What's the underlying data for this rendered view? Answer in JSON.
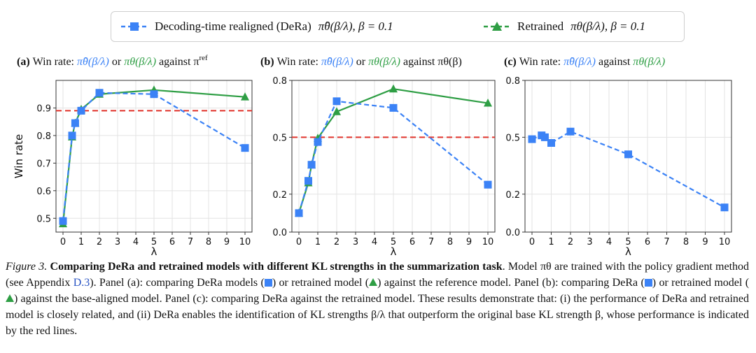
{
  "legend": {
    "blue_label": "Decoding-time realigned (DeRa)",
    "blue_math": "π̂θ(β/λ),  β = 0.1",
    "green_label": "Retrained",
    "green_math": "πθ(β/λ),  β = 0.1"
  },
  "colors": {
    "blue": "#3b82f6",
    "green": "#2e9e44",
    "red": "#e0332b",
    "axis": "#333333"
  },
  "chart_data": [
    {
      "type": "line",
      "panel": "(a)",
      "title_prefix": "(a)",
      "title_text": "Win rate:",
      "title_blue": "π̂θ(β/λ)",
      "title_mid": "or",
      "title_green": "πθ(β/λ)",
      "title_end": "against π",
      "title_sup": "ref",
      "xlabel": "λ",
      "ylabel": "Win rate",
      "xticks": [
        0,
        1,
        2,
        3,
        4,
        5,
        6,
        7,
        8,
        9,
        10
      ],
      "ylim": [
        0.45,
        1.0
      ],
      "yticks": [
        0.5,
        0.6,
        0.7,
        0.8,
        0.9
      ],
      "reference_line": 0.89,
      "series": [
        {
          "x": [
            0,
            0.5,
            0.67,
            1,
            2,
            5,
            10
          ],
          "values": [
            0.49,
            0.8,
            0.845,
            0.89,
            0.955,
            0.95,
            0.755
          ]
        },
        {
          "x": [
            0,
            0.5,
            0.67,
            1,
            2,
            5,
            10
          ],
          "values": [
            0.48,
            0.795,
            0.845,
            0.895,
            0.95,
            0.965,
            0.94
          ]
        }
      ]
    },
    {
      "type": "line",
      "panel": "(b)",
      "title_prefix": "(b)",
      "title_text": "Win rate:",
      "title_blue": "π̂θ(β/λ)",
      "title_mid": "or",
      "title_green": "πθ(β/λ)",
      "title_end": "against πθ(β)",
      "title_sup": "",
      "xlabel": "λ",
      "ylabel": "",
      "xticks": [
        0,
        1,
        2,
        3,
        4,
        5,
        6,
        7,
        8,
        9,
        10
      ],
      "ylim": [
        0.0,
        0.8
      ],
      "yticks": [
        0.0,
        0.2,
        0.5,
        0.8
      ],
      "reference_line": 0.5,
      "series": [
        {
          "x": [
            0,
            0.5,
            0.67,
            1,
            2,
            5,
            10
          ],
          "values": [
            0.1,
            0.27,
            0.355,
            0.475,
            0.69,
            0.655,
            0.25
          ]
        },
        {
          "x": [
            0,
            0.5,
            0.67,
            1,
            2,
            5,
            10
          ],
          "values": [
            0.1,
            0.26,
            0.355,
            0.495,
            0.635,
            0.755,
            0.68
          ]
        }
      ]
    },
    {
      "type": "line",
      "panel": "(c)",
      "title_prefix": "(c)",
      "title_text": "Win rate:",
      "title_blue": "π̂θ(β/λ)",
      "title_mid": "against",
      "title_green": "πθ(β/λ)",
      "title_end": "",
      "title_sup": "",
      "xlabel": "λ",
      "ylabel": "",
      "xticks": [
        0,
        1,
        2,
        3,
        4,
        5,
        6,
        7,
        8,
        9,
        10
      ],
      "ylim": [
        0.0,
        0.8
      ],
      "yticks": [
        0.0,
        0.2,
        0.5,
        0.8
      ],
      "reference_line": null,
      "series": [
        {
          "x": [
            0,
            0.5,
            0.67,
            1,
            2,
            5,
            10
          ],
          "values": [
            0.49,
            0.51,
            0.5,
            0.47,
            0.53,
            0.41,
            0.13
          ]
        }
      ]
    }
  ],
  "caption": {
    "fig_label": "Figure 3.",
    "bold": "Comparing DeRa and retrained models with different KL strengths in the summarization task",
    "p1": ". Model πθ are trained with the policy gradient method (see Appendix ",
    "appendix": "D.3",
    "p2": "). Panel (a): comparing DeRa models (",
    "p3": ") or retrained model (",
    "p4": ") against the reference model. Panel (b): comparing DeRa (",
    "p5": ") or retrained model (",
    "p6": ") against the base-aligned model. Panel (c): comparing DeRa against the retrained model. These results demonstrate that: (i) the performance of DeRa and retrained model is closely related, and (ii) DeRa enables the identification of KL strengths β/λ that outperform the original base KL strength β, whose performance is indicated by the red lines."
  }
}
